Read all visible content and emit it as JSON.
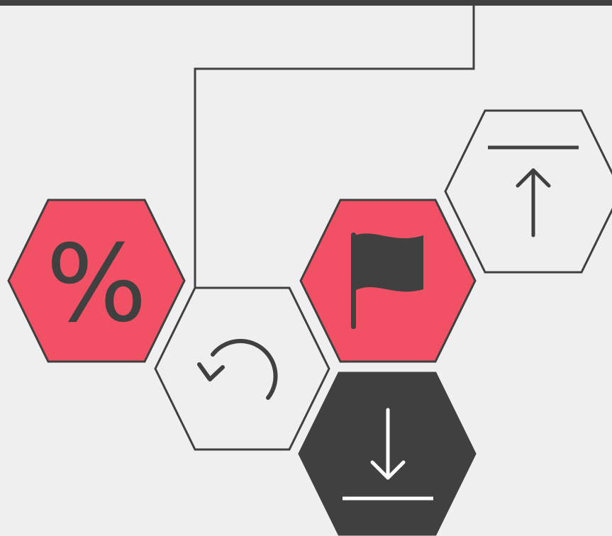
{
  "hexagons": [
    {
      "label": "%"
    }
  ]
}
